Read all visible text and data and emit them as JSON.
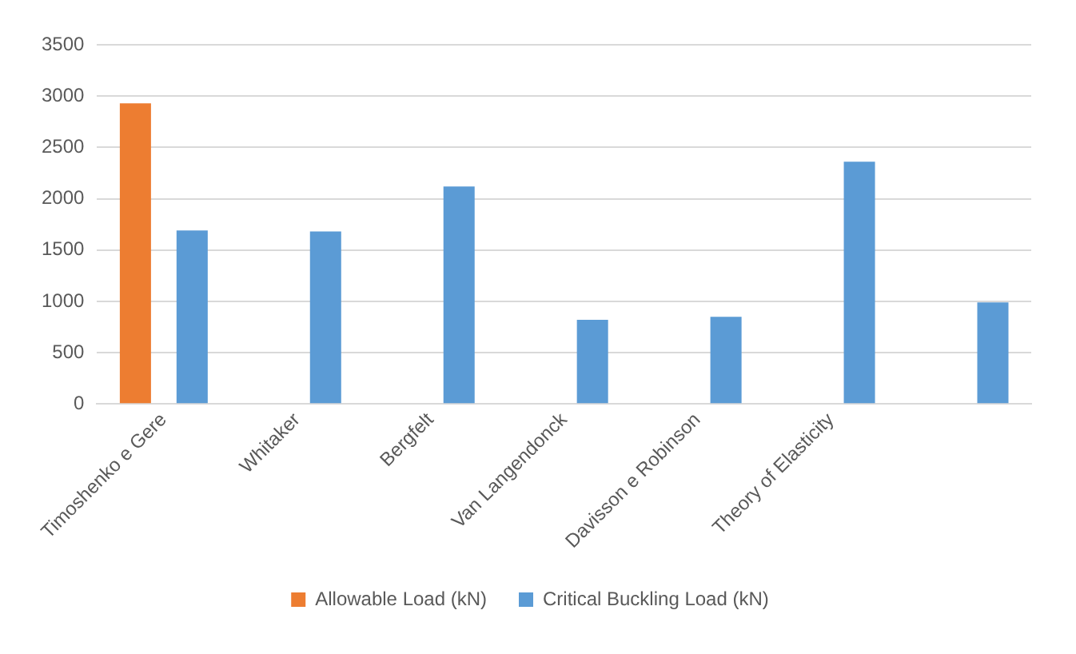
{
  "chart_data": {
    "type": "bar",
    "categories": [
      "Timoshenko e Gere",
      "Whitaker",
      "Bergfelt",
      "Van Langendonck",
      "Davisson e Robinson",
      "Theory of Elasticity",
      null
    ],
    "series": [
      {
        "name": "Allowable Load (kN)",
        "color": "#ed7d31",
        "values": [
          2930,
          null,
          null,
          null,
          null,
          null,
          null
        ]
      },
      {
        "name": "Critical Buckling Load (kN)",
        "color": "#5b9bd5",
        "values": [
          1690,
          1680,
          2120,
          820,
          850,
          2360,
          990
        ]
      }
    ],
    "ylim": [
      0,
      3500
    ],
    "yticks": [
      0,
      500,
      1000,
      1500,
      2000,
      2500,
      3000,
      3500
    ],
    "grid": "y",
    "legend": "bottom"
  }
}
